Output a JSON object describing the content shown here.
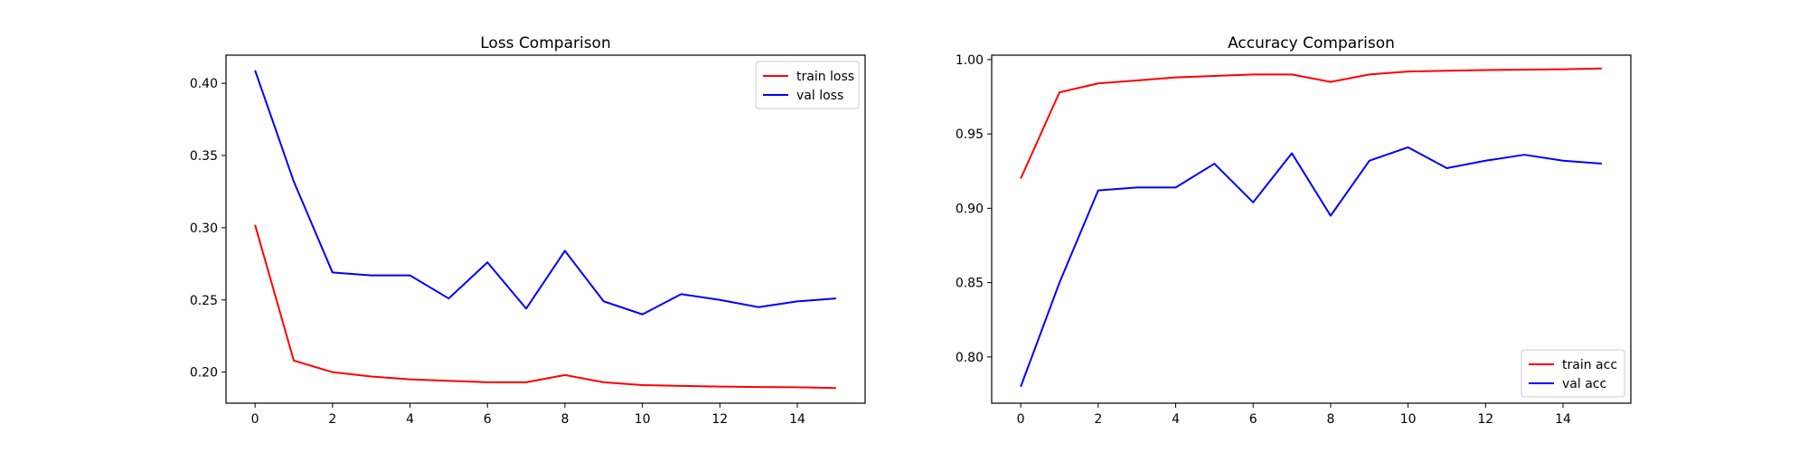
{
  "chart_data": [
    {
      "type": "line",
      "title": "Loss Comparison",
      "xlabel": "",
      "ylabel": "",
      "x": [
        0,
        1,
        2,
        3,
        4,
        5,
        6,
        7,
        8,
        9,
        10,
        11,
        12,
        13,
        14,
        15
      ],
      "xlim": [
        -0.75,
        15.75
      ],
      "ylim": [
        0.1785,
        0.4195
      ],
      "xticks": [
        0,
        2,
        4,
        6,
        8,
        10,
        12,
        14
      ],
      "yticks": [
        0.2,
        0.25,
        0.3,
        0.35,
        0.4
      ],
      "ytick_labels": [
        "0.20",
        "0.25",
        "0.30",
        "0.35",
        "0.40"
      ],
      "grid": false,
      "legend_position": "upper right",
      "series": [
        {
          "name": "train loss",
          "color": "#ff0000",
          "values": [
            0.302,
            0.208,
            0.2,
            0.197,
            0.195,
            0.194,
            0.193,
            0.193,
            0.198,
            0.193,
            0.191,
            0.1905,
            0.19,
            0.1897,
            0.1895,
            0.189
          ]
        },
        {
          "name": "val loss",
          "color": "#0000ff",
          "values": [
            0.409,
            0.332,
            0.269,
            0.267,
            0.267,
            0.251,
            0.276,
            0.244,
            0.284,
            0.249,
            0.24,
            0.254,
            0.25,
            0.245,
            0.249,
            0.251
          ]
        }
      ]
    },
    {
      "type": "line",
      "title": "Accuracy Comparison",
      "xlabel": "",
      "ylabel": "",
      "x": [
        0,
        1,
        2,
        3,
        4,
        5,
        6,
        7,
        8,
        9,
        10,
        11,
        12,
        13,
        14,
        15
      ],
      "xlim": [
        -0.75,
        15.75
      ],
      "ylim": [
        0.7689,
        1.003
      ],
      "xticks": [
        0,
        2,
        4,
        6,
        8,
        10,
        12,
        14
      ],
      "yticks": [
        0.8,
        0.85,
        0.9,
        0.95,
        1.0
      ],
      "ytick_labels": [
        "0.80",
        "0.85",
        "0.90",
        "0.95",
        "1.00"
      ],
      "grid": false,
      "legend_position": "lower right",
      "series": [
        {
          "name": "train acc",
          "color": "#ff0000",
          "values": [
            0.92,
            0.978,
            0.984,
            0.986,
            0.988,
            0.989,
            0.99,
            0.99,
            0.985,
            0.99,
            0.992,
            0.9925,
            0.993,
            0.9933,
            0.9935,
            0.994
          ]
        },
        {
          "name": "val acc",
          "color": "#0000ff",
          "values": [
            0.78,
            0.85,
            0.912,
            0.914,
            0.914,
            0.93,
            0.904,
            0.937,
            0.895,
            0.932,
            0.941,
            0.927,
            0.932,
            0.936,
            0.932,
            0.93
          ]
        }
      ]
    }
  ]
}
